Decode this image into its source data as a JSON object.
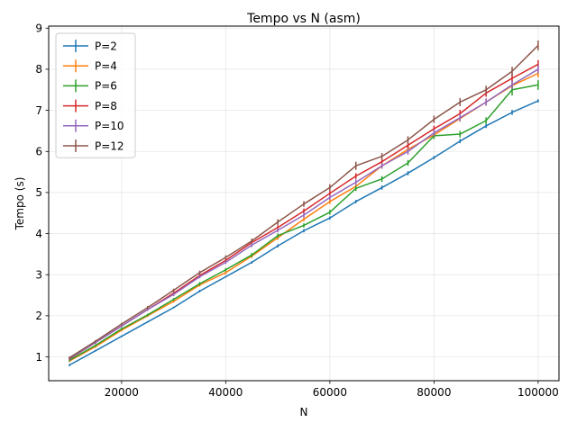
{
  "chart_data": {
    "type": "line",
    "title": "Tempo vs N (asm)",
    "xlabel": "N",
    "ylabel": "Tempo (s)",
    "xlim": [
      6000,
      104000
    ],
    "ylim": [
      0.42,
      9.05
    ],
    "xticks": [
      20000,
      40000,
      60000,
      80000,
      100000
    ],
    "yticks": [
      1,
      2,
      3,
      4,
      5,
      6,
      7,
      8,
      9
    ],
    "grid": true,
    "legend_position": "top-left",
    "x": [
      10000,
      15000,
      20000,
      25000,
      30000,
      35000,
      40000,
      45000,
      50000,
      55000,
      60000,
      65000,
      70000,
      75000,
      80000,
      85000,
      90000,
      95000,
      100000
    ],
    "series": [
      {
        "name": "P=2",
        "color": "#1f77b4",
        "values": [
          0.8,
          1.15,
          1.5,
          1.85,
          2.2,
          2.6,
          2.95,
          3.3,
          3.7,
          4.07,
          4.38,
          4.78,
          5.12,
          5.47,
          5.85,
          6.25,
          6.62,
          6.95,
          7.23
        ],
        "errors": [
          0.03,
          0.02,
          0.02,
          0.02,
          0.02,
          0.03,
          0.02,
          0.03,
          0.04,
          0.04,
          0.04,
          0.04,
          0.05,
          0.05,
          0.04,
          0.05,
          0.05,
          0.06,
          0.04
        ]
      },
      {
        "name": "P=4",
        "color": "#ff7f0e",
        "values": [
          0.9,
          1.25,
          1.65,
          2.0,
          2.35,
          2.75,
          3.05,
          3.45,
          3.9,
          4.35,
          4.78,
          5.15,
          5.65,
          6.05,
          6.4,
          6.8,
          7.2,
          7.6,
          7.9
        ],
        "errors": [
          0.03,
          0.03,
          0.03,
          0.03,
          0.03,
          0.04,
          0.04,
          0.04,
          0.05,
          0.05,
          0.06,
          0.06,
          0.07,
          0.07,
          0.07,
          0.08,
          0.08,
          0.09,
          0.1
        ]
      },
      {
        "name": "P=6",
        "color": "#2ca02c",
        "values": [
          0.92,
          1.28,
          1.68,
          2.02,
          2.4,
          2.78,
          3.12,
          3.48,
          3.95,
          4.2,
          4.52,
          5.1,
          5.33,
          5.72,
          6.38,
          6.42,
          6.75,
          7.5,
          7.62
        ],
        "errors": [
          0.03,
          0.03,
          0.03,
          0.03,
          0.03,
          0.04,
          0.04,
          0.05,
          0.05,
          0.05,
          0.06,
          0.06,
          0.07,
          0.07,
          0.08,
          0.08,
          0.08,
          0.14,
          0.12
        ]
      },
      {
        "name": "P=8",
        "color": "#d62728",
        "values": [
          0.95,
          1.35,
          1.75,
          2.15,
          2.55,
          2.98,
          3.35,
          3.78,
          4.15,
          4.55,
          4.98,
          5.4,
          5.75,
          6.15,
          6.55,
          6.92,
          7.42,
          7.78,
          8.12
        ],
        "errors": [
          0.03,
          0.03,
          0.03,
          0.03,
          0.04,
          0.04,
          0.04,
          0.05,
          0.05,
          0.06,
          0.06,
          0.07,
          0.07,
          0.08,
          0.08,
          0.09,
          0.09,
          0.1,
          0.1
        ]
      },
      {
        "name": "P=10",
        "color": "#9467bd",
        "values": [
          0.96,
          1.35,
          1.75,
          2.15,
          2.52,
          2.95,
          3.3,
          3.72,
          4.08,
          4.45,
          4.88,
          5.25,
          5.65,
          6.0,
          6.45,
          6.82,
          7.2,
          7.62,
          8.0
        ],
        "errors": [
          0.03,
          0.03,
          0.03,
          0.03,
          0.04,
          0.04,
          0.04,
          0.05,
          0.05,
          0.06,
          0.06,
          0.07,
          0.07,
          0.08,
          0.08,
          0.09,
          0.09,
          0.1,
          0.1
        ]
      },
      {
        "name": "P=12",
        "color": "#8c564b",
        "values": [
          0.98,
          1.38,
          1.8,
          2.2,
          2.62,
          3.05,
          3.42,
          3.82,
          4.28,
          4.72,
          5.12,
          5.65,
          5.88,
          6.28,
          6.78,
          7.2,
          7.5,
          7.95,
          8.58
        ],
        "errors": [
          0.03,
          0.03,
          0.03,
          0.04,
          0.04,
          0.05,
          0.05,
          0.06,
          0.07,
          0.07,
          0.08,
          0.1,
          0.08,
          0.09,
          0.09,
          0.1,
          0.1,
          0.11,
          0.12
        ]
      }
    ]
  }
}
